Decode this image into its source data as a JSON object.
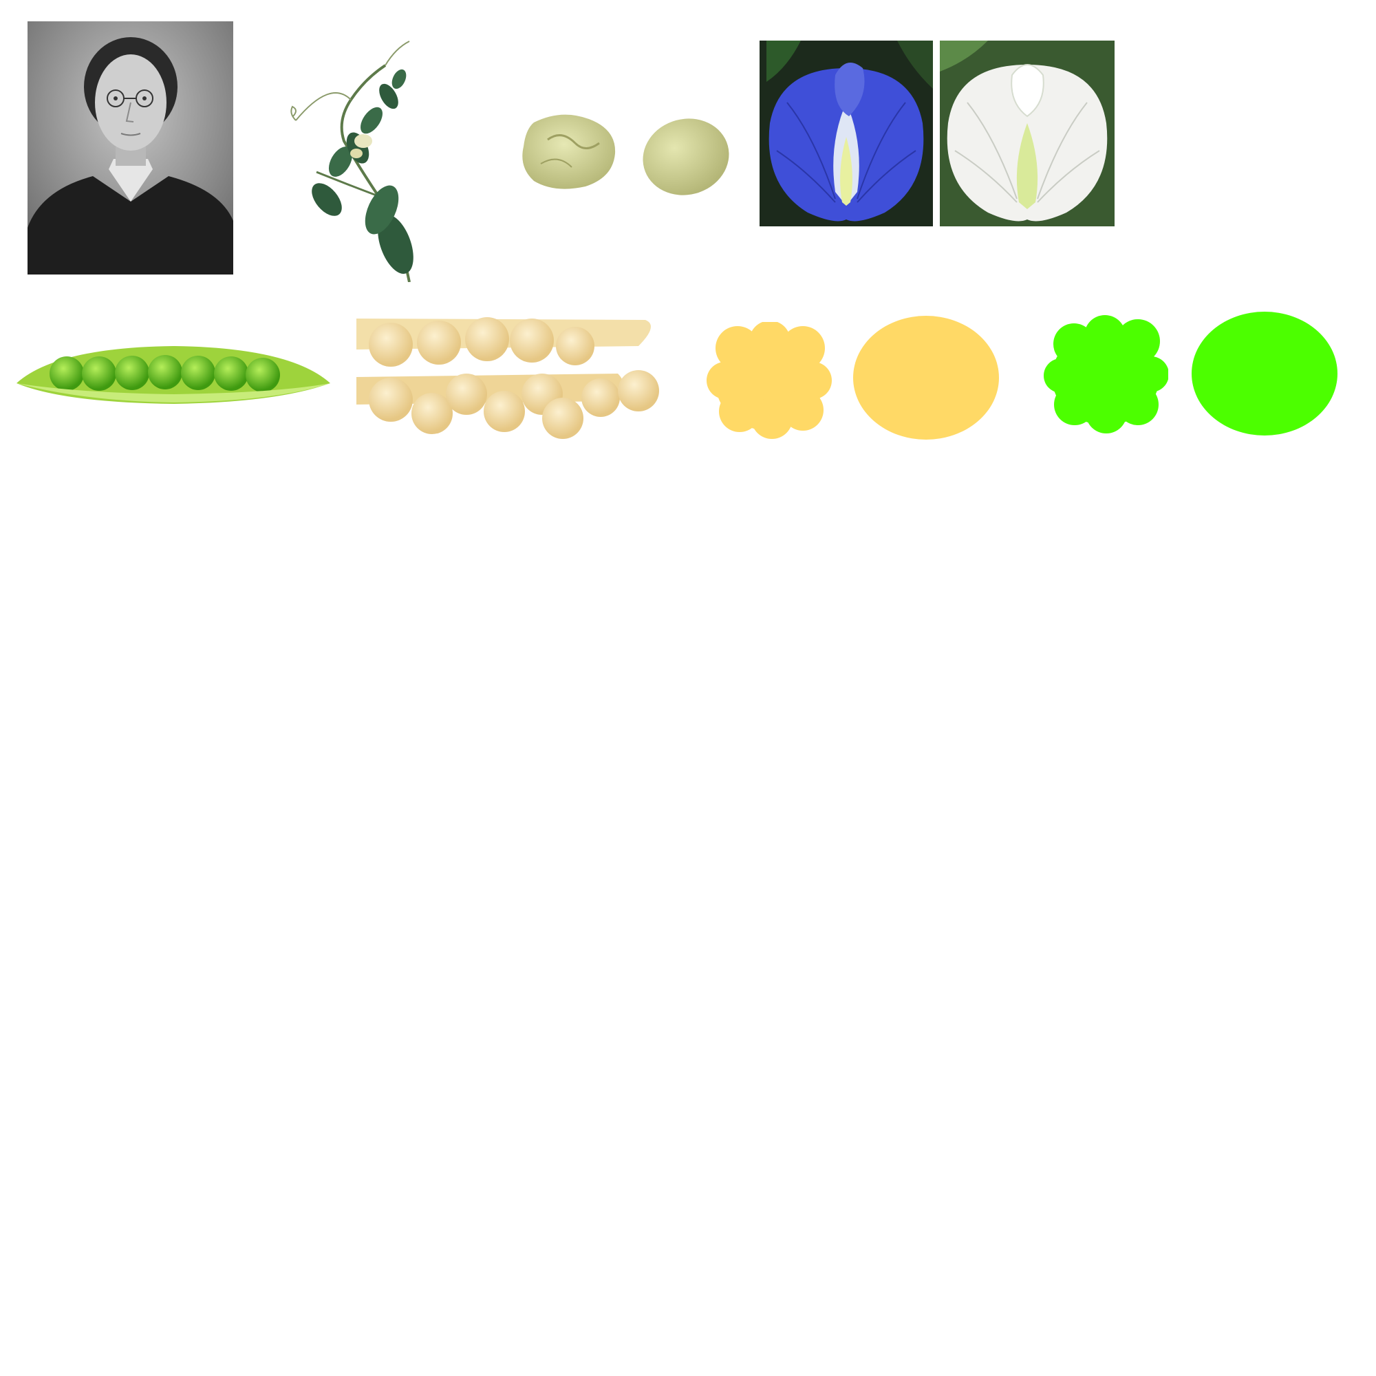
{
  "images": {
    "portrait": {
      "icon": "portrait-icon",
      "colors": {
        "bg": "#9a9a9a",
        "coat": "#1e1e1e",
        "face": "#cfcfcf"
      }
    },
    "pea_plant": {
      "icon": "pea-plant-icon",
      "colors": {
        "leaf": "#2f5a3c",
        "stem": "#5d7a4a",
        "flower": "#e8e6c0"
      }
    },
    "wrinkled_seed": {
      "icon": "wrinkled-seed-icon",
      "colors": {
        "fill": "#d9dca0"
      }
    },
    "round_seed": {
      "icon": "round-seed-icon",
      "colors": {
        "fill": "#d6d99a"
      }
    },
    "purple_flower": {
      "icon": "purple-flower-icon",
      "colors": {
        "petal": "#3f4fd8",
        "bg": "#1c2a1c"
      }
    },
    "white_flower": {
      "icon": "white-flower-icon",
      "colors": {
        "petal": "#f2f2ef",
        "bg": "#3a5a30"
      }
    },
    "green_pod": {
      "icon": "green-pod-icon",
      "colors": {
        "pod": "#9ed33c",
        "pea": "#5ab818"
      }
    },
    "yellow_pod": {
      "icon": "yellow-pod-icon",
      "colors": {
        "pod": "#f3dfa9",
        "pea": "#f0d79a"
      }
    }
  },
  "shapes": {
    "yellow_wrinkled": {
      "icon": "yellow-wrinkled-shape",
      "color": "#ffd966"
    },
    "yellow_round": {
      "icon": "yellow-round-shape",
      "color": "#ffd966"
    },
    "green_wrinkled": {
      "icon": "green-wrinkled-shape",
      "color": "#4cff00"
    },
    "green_round": {
      "icon": "green-round-shape",
      "color": "#4cff00"
    }
  }
}
